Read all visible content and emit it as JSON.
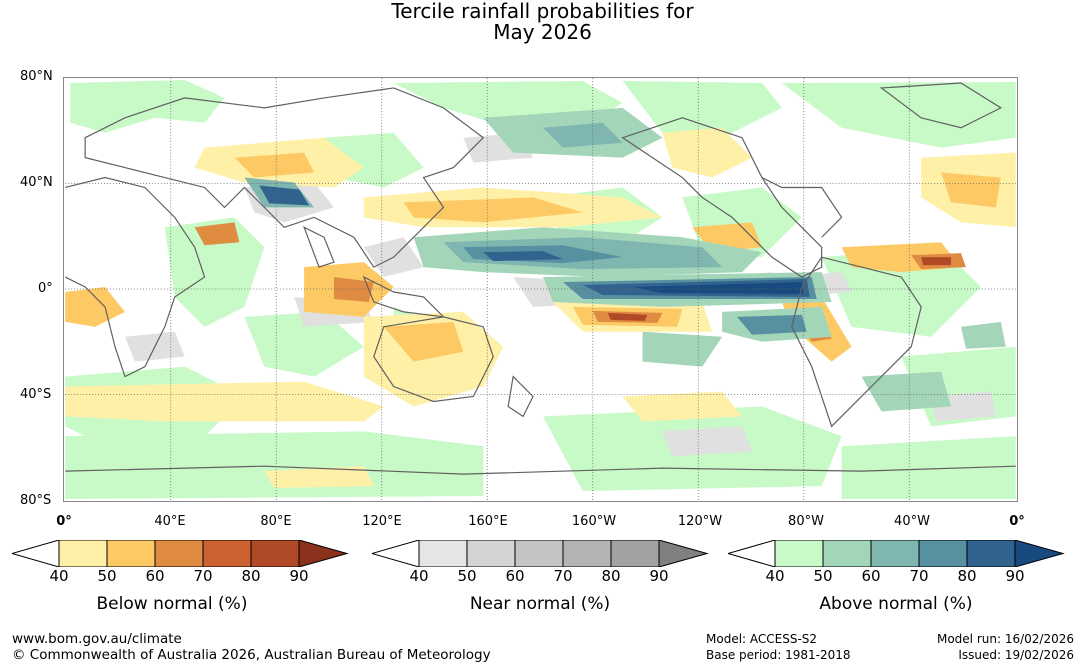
{
  "title": {
    "line1": "Tercile rainfall probabilities for",
    "line2": "May 2026"
  },
  "axes": {
    "latitude_labels": [
      "80°N",
      "40°N",
      "0°",
      "40°S",
      "80°S"
    ],
    "longitude_labels": [
      "0°",
      "40°E",
      "80°E",
      "120°E",
      "160°E",
      "160°W",
      "120°W",
      "80°W",
      "40°W",
      "0°"
    ]
  },
  "legends": [
    {
      "title": "Below normal (%)",
      "ticks": [
        "40",
        "50",
        "60",
        "70",
        "80",
        "90"
      ],
      "colors": [
        "#fff0a8",
        "#fdc964",
        "#df8c42",
        "#cc6232",
        "#b04a26",
        "#8c311c"
      ]
    },
    {
      "title": "Near normal (%)",
      "ticks": [
        "40",
        "50",
        "60",
        "70",
        "80",
        "90"
      ],
      "colors": [
        "#e5e5e5",
        "#d4d4d4",
        "#c4c4c4",
        "#b4b4b4",
        "#a2a2a2",
        "#808080"
      ]
    },
    {
      "title": "Above normal (%)",
      "ticks": [
        "40",
        "50",
        "60",
        "70",
        "80",
        "90"
      ],
      "colors": [
        "#c8fac8",
        "#a3d6b9",
        "#80b6b0",
        "#5790a0",
        "#32628e",
        "#184a80"
      ]
    }
  ],
  "footer": {
    "website": "www.bom.gov.au/climate",
    "copyright": "© Commonwealth of Australia 2026, Australian Bureau of Meteorology",
    "model": "Model: ACCESS-S2",
    "base_period": "Base period: 1981-2018",
    "model_run": "Model run: 16/02/2026",
    "issued": "Issued: 19/02/2026"
  }
}
